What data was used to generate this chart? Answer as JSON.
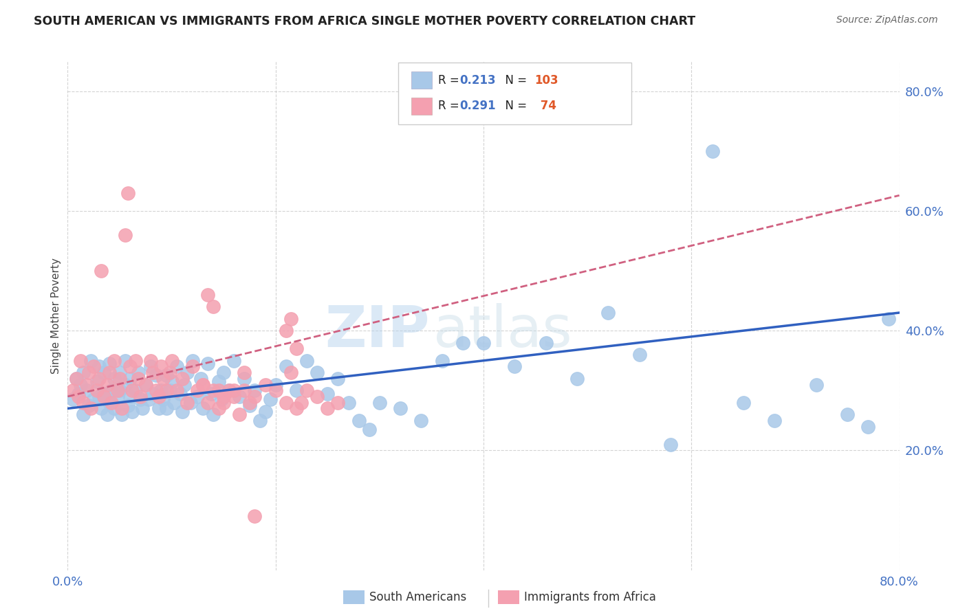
{
  "title": "SOUTH AMERICAN VS IMMIGRANTS FROM AFRICA SINGLE MOTHER POVERTY CORRELATION CHART",
  "source": "Source: ZipAtlas.com",
  "ylabel": "Single Mother Poverty",
  "legend_label1": "South Americans",
  "legend_label2": "Immigrants from Africa",
  "R1": "0.213",
  "N1": "103",
  "R2": "0.291",
  "N2": " 74",
  "color1": "#a8c8e8",
  "color2": "#f4a0b0",
  "trendline1_color": "#3060c0",
  "trendline2_color": "#d06080",
  "watermark_zip": "ZIP",
  "watermark_atlas": "atlas",
  "xlim": [
    0.0,
    0.8
  ],
  "ylim": [
    0.0,
    0.85
  ],
  "yticks": [
    0.2,
    0.4,
    0.6,
    0.8
  ],
  "ytick_labels": [
    "20.0%",
    "40.0%",
    "60.0%",
    "80.0%"
  ],
  "sa_x": [
    0.005,
    0.008,
    0.01,
    0.012,
    0.015,
    0.015,
    0.018,
    0.02,
    0.022,
    0.025,
    0.028,
    0.03,
    0.03,
    0.032,
    0.035,
    0.035,
    0.038,
    0.04,
    0.04,
    0.042,
    0.045,
    0.045,
    0.048,
    0.05,
    0.05,
    0.052,
    0.055,
    0.055,
    0.058,
    0.06,
    0.06,
    0.062,
    0.065,
    0.068,
    0.07,
    0.072,
    0.075,
    0.078,
    0.08,
    0.082,
    0.085,
    0.088,
    0.09,
    0.092,
    0.095,
    0.095,
    0.098,
    0.1,
    0.102,
    0.105,
    0.108,
    0.11,
    0.112,
    0.115,
    0.118,
    0.12,
    0.125,
    0.128,
    0.13,
    0.135,
    0.138,
    0.14,
    0.145,
    0.148,
    0.15,
    0.155,
    0.16,
    0.165,
    0.17,
    0.175,
    0.18,
    0.185,
    0.19,
    0.195,
    0.2,
    0.21,
    0.22,
    0.23,
    0.24,
    0.25,
    0.26,
    0.27,
    0.28,
    0.29,
    0.3,
    0.32,
    0.34,
    0.36,
    0.38,
    0.4,
    0.43,
    0.46,
    0.49,
    0.52,
    0.55,
    0.58,
    0.62,
    0.65,
    0.68,
    0.72,
    0.75,
    0.77,
    0.79
  ],
  "sa_y": [
    0.285,
    0.32,
    0.295,
    0.31,
    0.33,
    0.26,
    0.3,
    0.275,
    0.35,
    0.285,
    0.315,
    0.34,
    0.29,
    0.27,
    0.33,
    0.295,
    0.26,
    0.345,
    0.28,
    0.3,
    0.32,
    0.27,
    0.29,
    0.33,
    0.3,
    0.26,
    0.31,
    0.35,
    0.275,
    0.32,
    0.29,
    0.265,
    0.3,
    0.33,
    0.285,
    0.27,
    0.31,
    0.285,
    0.34,
    0.295,
    0.325,
    0.27,
    0.3,
    0.285,
    0.325,
    0.27,
    0.3,
    0.315,
    0.28,
    0.34,
    0.295,
    0.265,
    0.31,
    0.33,
    0.28,
    0.35,
    0.29,
    0.32,
    0.27,
    0.345,
    0.295,
    0.26,
    0.315,
    0.285,
    0.33,
    0.3,
    0.35,
    0.29,
    0.32,
    0.275,
    0.3,
    0.25,
    0.265,
    0.285,
    0.31,
    0.34,
    0.3,
    0.35,
    0.33,
    0.295,
    0.32,
    0.28,
    0.25,
    0.235,
    0.28,
    0.27,
    0.25,
    0.35,
    0.38,
    0.38,
    0.34,
    0.38,
    0.32,
    0.43,
    0.36,
    0.21,
    0.7,
    0.28,
    0.25,
    0.31,
    0.26,
    0.24,
    0.42
  ],
  "af_x": [
    0.005,
    0.008,
    0.01,
    0.012,
    0.015,
    0.018,
    0.02,
    0.022,
    0.025,
    0.028,
    0.03,
    0.032,
    0.035,
    0.038,
    0.04,
    0.042,
    0.045,
    0.048,
    0.05,
    0.052,
    0.055,
    0.058,
    0.06,
    0.062,
    0.065,
    0.068,
    0.07,
    0.075,
    0.08,
    0.082,
    0.085,
    0.088,
    0.09,
    0.092,
    0.095,
    0.098,
    0.1,
    0.105,
    0.11,
    0.115,
    0.12,
    0.125,
    0.13,
    0.135,
    0.14,
    0.145,
    0.15,
    0.16,
    0.17,
    0.18,
    0.19,
    0.2,
    0.21,
    0.215,
    0.22,
    0.225,
    0.23,
    0.24,
    0.25,
    0.26,
    0.21,
    0.215,
    0.22,
    0.13,
    0.135,
    0.14,
    0.145,
    0.15,
    0.155,
    0.16,
    0.165,
    0.17,
    0.175,
    0.18
  ],
  "af_y": [
    0.3,
    0.32,
    0.29,
    0.35,
    0.28,
    0.31,
    0.33,
    0.27,
    0.34,
    0.3,
    0.32,
    0.5,
    0.29,
    0.31,
    0.33,
    0.28,
    0.35,
    0.3,
    0.32,
    0.27,
    0.56,
    0.63,
    0.34,
    0.3,
    0.35,
    0.32,
    0.29,
    0.31,
    0.35,
    0.33,
    0.3,
    0.29,
    0.34,
    0.32,
    0.3,
    0.33,
    0.35,
    0.3,
    0.32,
    0.28,
    0.34,
    0.3,
    0.31,
    0.46,
    0.44,
    0.3,
    0.29,
    0.3,
    0.33,
    0.29,
    0.31,
    0.3,
    0.28,
    0.33,
    0.27,
    0.28,
    0.3,
    0.29,
    0.27,
    0.28,
    0.4,
    0.42,
    0.37,
    0.31,
    0.28,
    0.3,
    0.27,
    0.28,
    0.3,
    0.29,
    0.26,
    0.3,
    0.28,
    0.09
  ]
}
